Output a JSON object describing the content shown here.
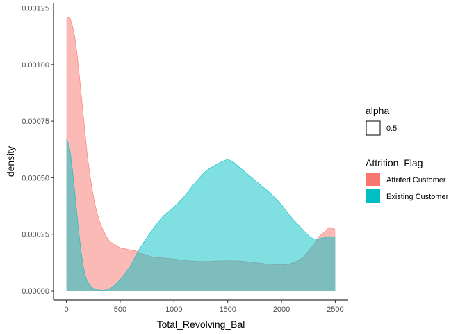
{
  "chart_data": {
    "type": "area",
    "xlabel": "Total_Revolving_Bal",
    "ylabel": "density",
    "xlim": [
      -120,
      2620
    ],
    "ylim": [
      -4e-05,
      0.00127
    ],
    "x_ticks": [
      0,
      500,
      1000,
      1500,
      2000,
      2500
    ],
    "x_tick_labels": [
      "0",
      "500",
      "1000",
      "1500",
      "2000",
      "2500"
    ],
    "y_ticks": [
      0,
      0.00025,
      0.0005,
      0.00075,
      0.001,
      0.00125
    ],
    "y_tick_labels": [
      "0.00000",
      "0.00025",
      "0.00050",
      "0.00075",
      "0.00100",
      "0.00125"
    ],
    "fill_alpha": 0.5,
    "grid": false,
    "legend_position": "right",
    "series": [
      {
        "name": "Attrited Customer",
        "color": "#F8766D",
        "x": [
          0,
          25,
          50,
          75,
          100,
          125,
          150,
          175,
          200,
          250,
          300,
          350,
          400,
          450,
          500,
          550,
          600,
          650,
          700,
          800,
          900,
          1000,
          1100,
          1200,
          1300,
          1400,
          1500,
          1600,
          1700,
          1800,
          1900,
          2000,
          2100,
          2200,
          2250,
          2300,
          2350,
          2400,
          2450,
          2500
        ],
        "y": [
          0.0012,
          0.00121,
          0.00118,
          0.00113,
          0.00104,
          0.00093,
          0.00081,
          0.00069,
          0.00058,
          0.00042,
          0.00032,
          0.00026,
          0.00022,
          0.000205,
          0.00019,
          0.000185,
          0.00018,
          0.000175,
          0.000165,
          0.00015,
          0.000145,
          0.00014,
          0.000135,
          0.00013,
          0.00013,
          0.000132,
          0.000133,
          0.000132,
          0.000128,
          0.000122,
          0.000117,
          0.000115,
          0.000122,
          0.000148,
          0.000175,
          0.000205,
          0.00024,
          0.00026,
          0.00028,
          0.00027
        ]
      },
      {
        "name": "Existing Customer",
        "color": "#00BFC4",
        "x": [
          0,
          25,
          50,
          75,
          100,
          125,
          150,
          175,
          200,
          250,
          300,
          350,
          400,
          450,
          500,
          550,
          600,
          650,
          700,
          800,
          900,
          1000,
          1100,
          1200,
          1300,
          1400,
          1450,
          1500,
          1550,
          1600,
          1700,
          1800,
          1900,
          2000,
          2100,
          2200,
          2250,
          2300,
          2350,
          2400,
          2450,
          2500
        ],
        "y": [
          0.00067,
          0.00064,
          0.00056,
          0.00045,
          0.00033,
          0.00022,
          0.00013,
          7e-05,
          4e-05,
          1e-05,
          3e-06,
          2e-06,
          8e-06,
          2.5e-05,
          5e-05,
          8e-05,
          0.000115,
          0.00016,
          0.0002,
          0.00027,
          0.00033,
          0.00037,
          0.00042,
          0.00048,
          0.00053,
          0.00056,
          0.000572,
          0.00058,
          0.00057,
          0.00055,
          0.00051,
          0.00047,
          0.00043,
          0.00038,
          0.00032,
          0.00027,
          0.000245,
          0.00023,
          0.00023,
          0.000235,
          0.00024,
          0.000235
        ]
      }
    ]
  },
  "legend": {
    "alpha_title": "alpha",
    "alpha_value": "0.5",
    "fill_title": "Attrition_Flag",
    "entries": [
      {
        "label": "Attrited Customer",
        "color": "#F8766D"
      },
      {
        "label": "Existing Customer",
        "color": "#00BFC4"
      }
    ]
  }
}
